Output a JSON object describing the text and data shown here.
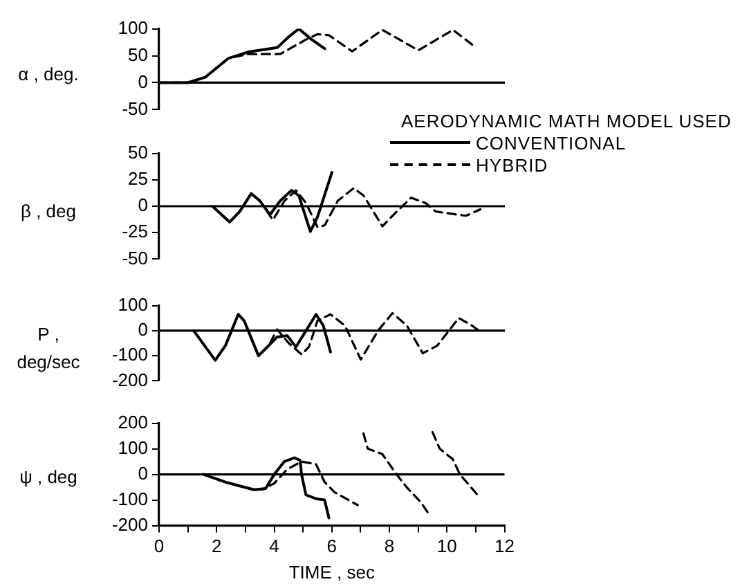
{
  "chart_data": [
    {
      "type": "line",
      "ylabel": "α , deg.",
      "legend_title": "AERODYNAMIC MATH MODEL USED",
      "legend": "right",
      "xlim": [
        0,
        12
      ],
      "ylim": [
        -50,
        100
      ],
      "yticks": [
        -50,
        0,
        50,
        100
      ],
      "tick_labels": "y",
      "grid": false,
      "marker": "none",
      "ref_lines": [
        {
          "axis": "y",
          "value": 0,
          "color": "#000000"
        }
      ],
      "series": [
        {
          "name": "CONVENTIONAL",
          "color": "#000000",
          "line_style": "solid",
          "x": [
            0,
            1,
            1.6,
            2.4,
            3.1,
            4.1,
            4.5,
            4.85,
            5.3,
            5.75
          ],
          "values": [
            0,
            0,
            10,
            45,
            57,
            65,
            85,
            100,
            80,
            63
          ]
        },
        {
          "name": "HYBRID",
          "color": "#000000",
          "line_style": "dashed",
          "x": [
            0,
            1,
            1.6,
            2.4,
            3.1,
            4.2,
            5.1,
            5.5,
            5.9,
            6.7,
            7.75,
            9.0,
            10.2,
            11.0
          ],
          "values": [
            0,
            0,
            10,
            45,
            53,
            53,
            80,
            90,
            88,
            58,
            98,
            60,
            98,
            65
          ]
        }
      ]
    },
    {
      "type": "line",
      "ylabel": "β , deg",
      "xlim": [
        0,
        12
      ],
      "ylim": [
        -50,
        50
      ],
      "yticks": [
        -50,
        -25,
        0,
        25,
        50
      ],
      "tick_labels": "y",
      "grid": false,
      "marker": "none",
      "ref_lines": [
        {
          "axis": "y",
          "value": 0,
          "color": "#000000"
        }
      ],
      "series": [
        {
          "color": "#000000",
          "line_style": "solid",
          "x": [
            1.85,
            2.45,
            2.8,
            3.2,
            3.5,
            3.85,
            4.2,
            4.6,
            4.85,
            5.25,
            5.5,
            6.0
          ],
          "values": [
            0,
            -15,
            -5,
            12,
            5,
            -8,
            5,
            15,
            10,
            -24,
            -10,
            32
          ]
        },
        {
          "color": "#000000",
          "line_style": "dashed",
          "x": [
            1.85,
            2.45,
            2.8,
            3.2,
            3.5,
            3.95,
            4.35,
            4.75,
            5.1,
            5.5,
            5.75,
            6.2,
            6.75,
            7.1,
            7.75,
            8.25,
            8.75,
            9.25,
            9.6,
            10.1,
            10.65,
            11.15
          ],
          "values": [
            0,
            -15,
            -5,
            12,
            5,
            -13,
            5,
            15,
            3,
            -20,
            -18,
            5,
            17,
            10,
            -19,
            -5,
            8,
            3,
            -5,
            -7,
            -9,
            -3
          ]
        }
      ]
    },
    {
      "type": "line",
      "ylabel": "P ,\ndeg/sec",
      "xlim": [
        0,
        12
      ],
      "ylim": [
        -200,
        100
      ],
      "yticks": [
        -200,
        -100,
        0,
        100
      ],
      "tick_labels": "y",
      "grid": false,
      "marker": "none",
      "ref_lines": [
        {
          "axis": "y",
          "value": 0,
          "color": "#000000"
        }
      ],
      "series": [
        {
          "color": "#000000",
          "line_style": "solid",
          "x": [
            1.2,
            1.95,
            2.3,
            2.75,
            2.95,
            3.45,
            3.8,
            4.1,
            4.45,
            4.75,
            5.1,
            5.45,
            5.7,
            5.95
          ],
          "values": [
            0,
            -118,
            -60,
            65,
            40,
            -100,
            -60,
            -25,
            -20,
            -65,
            0,
            65,
            20,
            -85
          ]
        },
        {
          "color": "#000000",
          "line_style": "dashed",
          "x": [
            1.2,
            1.95,
            2.3,
            2.75,
            2.95,
            3.45,
            3.8,
            4.1,
            4.5,
            4.95,
            5.2,
            5.5,
            5.95,
            6.45,
            7.0,
            7.6,
            8.1,
            8.6,
            9.15,
            9.65,
            10.4,
            10.8,
            11.1
          ],
          "values": [
            0,
            -118,
            -60,
            65,
            40,
            -100,
            -60,
            5,
            -50,
            -95,
            -65,
            40,
            65,
            20,
            -115,
            0,
            70,
            20,
            -90,
            -60,
            50,
            25,
            0
          ]
        }
      ]
    },
    {
      "type": "line",
      "ylabel": "ψ , deg",
      "xlabel": "TIME , sec",
      "xlim": [
        0,
        12
      ],
      "xticks": [
        0,
        {
          "value": 1,
          "label": null
        },
        2,
        {
          "value": 3,
          "label": null
        },
        4,
        {
          "value": 5,
          "label": null
        },
        6,
        {
          "value": 7,
          "label": null
        },
        8,
        {
          "value": 9,
          "label": null
        },
        10,
        {
          "value": 11,
          "label": null
        },
        12
      ],
      "ylim": [
        -200,
        200
      ],
      "yticks": [
        -200,
        -100,
        0,
        100,
        200
      ],
      "grid": false,
      "marker": "none",
      "ref_lines": [
        {
          "axis": "y",
          "value": 0,
          "color": "#000000"
        }
      ],
      "series": [
        {
          "color": "#000000",
          "line_style": "solid",
          "x": [
            1.55,
            2.3,
            3.3,
            3.7,
            4.0,
            4.35,
            4.7,
            4.9,
            4.95,
            5.1,
            5.45,
            5.75,
            5.9
          ],
          "values": [
            0,
            -30,
            -60,
            -55,
            0,
            50,
            65,
            55,
            0,
            -80,
            -95,
            -100,
            -170
          ]
        },
        {
          "color": "#000000",
          "line_style": "dashed",
          "x": [
            1.55,
            2.3,
            3.3,
            3.6,
            4.0,
            4.45,
            4.95,
            5.45,
            5.75,
            6.1,
            6.9,
            7.0,
            7.1,
            7.25,
            7.75,
            8.25,
            8.6,
            9.1,
            9.4,
            9.45,
            9.5,
            9.75,
            10.2,
            10.45,
            11.1
          ],
          "values": [
            0,
            -30,
            -60,
            -58,
            -35,
            20,
            50,
            40,
            -30,
            -70,
            -120,
            null,
            160,
            100,
            80,
            0,
            -50,
            -110,
            -160,
            null,
            165,
            100,
            60,
            0,
            -85
          ]
        }
      ]
    }
  ]
}
